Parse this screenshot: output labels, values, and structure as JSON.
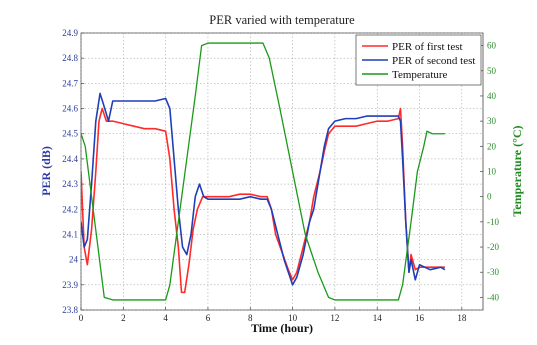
{
  "chart_data": {
    "type": "line",
    "title": "PER varied with temperature",
    "xlabel": "Time (hour)",
    "ylabel": "PER (dB)",
    "y2label": "Temperature (°C)",
    "xlim": [
      0,
      19
    ],
    "ylim": [
      23.8,
      24.9
    ],
    "y2lim": [
      -45,
      65
    ],
    "xticks": [
      "0",
      "2",
      "4",
      "6",
      "8",
      "10",
      "12",
      "14",
      "16",
      "18"
    ],
    "yticks": [
      "23.8",
      "23.9",
      "24",
      "24.1",
      "24.2",
      "24.3",
      "24.4",
      "24.5",
      "24.6",
      "24.7",
      "24.8",
      "24.9"
    ],
    "y2ticks": [
      "-40",
      "-30",
      "-20",
      "-10",
      "0",
      "10",
      "20",
      "30",
      "40",
      "50",
      "60"
    ],
    "grid": true,
    "legend": "top-right",
    "colors": {
      "first": "#ff2a2a",
      "second": "#1f3fb8",
      "temperature": "#1a9a1a",
      "leftAxis": "#2b3aa8",
      "rightAxis": "#1e8a1e"
    },
    "series": [
      {
        "name": "PER of first test",
        "axis": "left",
        "x": [
          0,
          0.15,
          0.3,
          0.5,
          0.7,
          0.85,
          1.0,
          1.2,
          1.5,
          2.0,
          2.5,
          3.0,
          3.5,
          4.0,
          4.2,
          4.4,
          4.6,
          4.75,
          4.9,
          5.1,
          5.3,
          5.5,
          5.75,
          6.0,
          6.5,
          7.0,
          7.5,
          8.0,
          8.5,
          8.8,
          9.0,
          9.2,
          9.5,
          9.8,
          10.0,
          10.2,
          10.5,
          10.8,
          11.0,
          11.3,
          11.5,
          11.7,
          12.0,
          12.5,
          13.0,
          13.5,
          14.0,
          14.5,
          15.0,
          15.1,
          15.2,
          15.35,
          15.5,
          15.6,
          15.8,
          16.0,
          16.5,
          17.0,
          17.2
        ],
        "y": [
          24.35,
          24.05,
          23.98,
          24.12,
          24.35,
          24.55,
          24.6,
          24.55,
          24.55,
          24.54,
          24.53,
          24.52,
          24.52,
          24.51,
          24.4,
          24.2,
          24.05,
          23.87,
          23.87,
          23.98,
          24.12,
          24.2,
          24.25,
          24.25,
          24.25,
          24.25,
          24.26,
          24.26,
          24.25,
          24.25,
          24.2,
          24.1,
          24.03,
          23.96,
          23.92,
          23.95,
          24.05,
          24.15,
          24.25,
          24.35,
          24.43,
          24.5,
          24.53,
          24.53,
          24.53,
          24.54,
          24.55,
          24.55,
          24.56,
          24.6,
          24.45,
          24.15,
          23.95,
          24.02,
          23.96,
          23.97,
          23.97,
          23.97,
          23.97
        ]
      },
      {
        "name": "PER of second test",
        "axis": "left",
        "x": [
          0,
          0.15,
          0.3,
          0.5,
          0.7,
          0.9,
          1.05,
          1.3,
          1.5,
          2.0,
          2.5,
          3.0,
          3.5,
          4.0,
          4.2,
          4.4,
          4.6,
          4.8,
          5.0,
          5.2,
          5.4,
          5.6,
          5.8,
          6.0,
          6.5,
          7.0,
          7.5,
          8.0,
          8.5,
          8.8,
          9.0,
          9.3,
          9.6,
          9.8,
          10.0,
          10.2,
          10.5,
          10.8,
          11.0,
          11.3,
          11.5,
          11.7,
          12.0,
          12.5,
          13.0,
          13.5,
          14.0,
          14.5,
          15.0,
          15.1,
          15.2,
          15.35,
          15.5,
          15.6,
          15.8,
          16.0,
          16.5,
          17.0,
          17.2
        ],
        "y": [
          24.15,
          24.05,
          24.08,
          24.3,
          24.55,
          24.66,
          24.62,
          24.55,
          24.63,
          24.63,
          24.63,
          24.63,
          24.63,
          24.64,
          24.6,
          24.4,
          24.2,
          24.05,
          24.02,
          24.1,
          24.25,
          24.3,
          24.25,
          24.24,
          24.24,
          24.24,
          24.24,
          24.25,
          24.24,
          24.24,
          24.2,
          24.1,
          24.0,
          23.95,
          23.9,
          23.93,
          24.02,
          24.15,
          24.2,
          24.35,
          24.45,
          24.52,
          24.55,
          24.56,
          24.56,
          24.57,
          24.57,
          24.57,
          24.57,
          24.55,
          24.4,
          24.15,
          23.95,
          24.0,
          23.92,
          23.98,
          23.96,
          23.97,
          23.96
        ]
      },
      {
        "name": "Temperature",
        "axis": "right",
        "x": [
          0,
          0.2,
          0.5,
          0.8,
          1.1,
          1.5,
          2.0,
          3.0,
          4.0,
          4.2,
          4.6,
          5.0,
          5.4,
          5.7,
          6.0,
          7.0,
          8.0,
          8.6,
          8.9,
          9.4,
          10.0,
          10.6,
          11.2,
          11.7,
          12.0,
          13.0,
          14.0,
          15.0,
          15.2,
          15.6,
          15.9,
          16.2,
          16.35,
          16.6,
          17.0,
          17.2
        ],
        "y": [
          25,
          20,
          0,
          -20,
          -40,
          -41,
          -41,
          -41,
          -41,
          -35,
          -10,
          15,
          40,
          60,
          61,
          61,
          61,
          61,
          55,
          35,
          10,
          -15,
          -30,
          -40,
          -41,
          -41,
          -41,
          -41,
          -35,
          -10,
          10,
          20,
          26,
          25,
          25,
          25
        ]
      }
    ]
  }
}
